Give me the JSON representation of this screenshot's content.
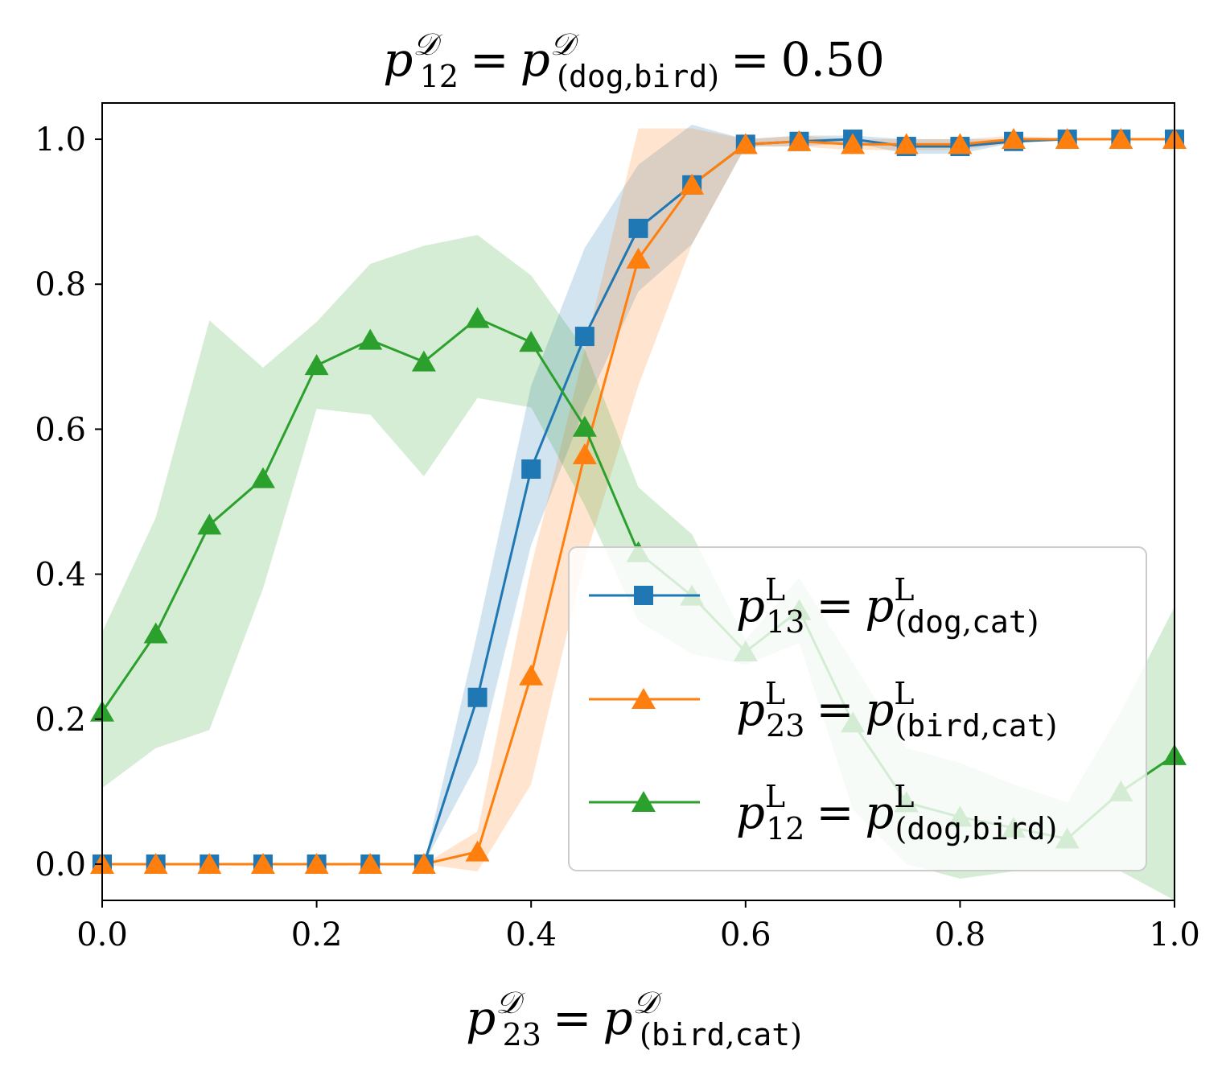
{
  "chart_data": {
    "type": "line",
    "title": {
      "lhs_var": "p",
      "lhs_sup": "𝒟",
      "lhs_sub": "12",
      "eq": "=",
      "rhs_var": "p",
      "rhs_sup": "𝒟",
      "rhs_sub_open": "(",
      "rhs_sub_a": "dog",
      "rhs_sub_sep": ",",
      "rhs_sub_b": "bird",
      "rhs_sub_close": ")",
      "eq2": "=",
      "value": "0.50"
    },
    "xlabel": {
      "lhs_var": "p",
      "lhs_sup": "𝒟",
      "lhs_sub": "23",
      "eq": "=",
      "rhs_var": "p",
      "rhs_sup": "𝒟",
      "rhs_sub_open": "(",
      "rhs_sub_a": "bird",
      "rhs_sub_sep": ",",
      "rhs_sub_b": "cat",
      "rhs_sub_close": ")"
    },
    "ylabel": "",
    "xlim": [
      0.0,
      1.0
    ],
    "ylim": [
      -0.05,
      1.05
    ],
    "xticks": [
      0.0,
      0.2,
      0.4,
      0.6,
      0.8,
      1.0
    ],
    "xtick_labels": [
      "0.0",
      "0.2",
      "0.4",
      "0.6",
      "0.8",
      "1.0"
    ],
    "yticks": [
      0.0,
      0.2,
      0.4,
      0.6,
      0.8,
      1.0
    ],
    "ytick_labels": [
      "0.0",
      "0.2",
      "0.4",
      "0.6",
      "0.8",
      "1.0"
    ],
    "grid": false,
    "legend_position": "lower right",
    "x": [
      0.0,
      0.05,
      0.1,
      0.15,
      0.2,
      0.25,
      0.3,
      0.35,
      0.4,
      0.45,
      0.5,
      0.55,
      0.6,
      0.65,
      0.7,
      0.75,
      0.8,
      0.85,
      0.9,
      0.95,
      1.0
    ],
    "series": [
      {
        "key": "s13",
        "color": "#1f77b4",
        "marker": "square",
        "label": {
          "var": "p",
          "sup": "L",
          "sub": "13",
          "eq": "=",
          "rvar": "p",
          "rsup": "L",
          "open": "(",
          "a": "dog",
          "sep": ",",
          "b": "cat",
          "close": ")"
        },
        "values": [
          0.0,
          0.0,
          0.0,
          0.0,
          0.0,
          0.0,
          0.0,
          0.23,
          0.545,
          0.728,
          0.877,
          0.937,
          0.993,
          0.997,
          1.0,
          0.99,
          0.99,
          0.997,
          1.0,
          1.0,
          1.0
        ],
        "lower": [
          0.0,
          0.0,
          0.0,
          0.0,
          0.0,
          0.0,
          0.0,
          0.14,
          0.44,
          0.63,
          0.79,
          0.855,
          0.99,
          0.99,
          0.995,
          0.98,
          0.98,
          0.995,
          1.0,
          1.0,
          1.0
        ],
        "upper": [
          0.0,
          0.0,
          0.0,
          0.0,
          0.0,
          0.0,
          0.0,
          0.32,
          0.66,
          0.85,
          0.965,
          1.02,
          1.0,
          1.005,
          1.005,
          1.0,
          1.0,
          1.0,
          1.0,
          1.0,
          1.0
        ]
      },
      {
        "key": "s23",
        "color": "#ff7f0e",
        "marker": "triangle",
        "label": {
          "var": "p",
          "sup": "L",
          "sub": "23",
          "eq": "=",
          "rvar": "p",
          "rsup": "L",
          "open": "(",
          "a": "bird",
          "sep": ",",
          "b": "cat",
          "close": ")"
        },
        "values": [
          0.0,
          0.0,
          0.0,
          0.0,
          0.0,
          0.0,
          0.0,
          0.017,
          0.26,
          0.565,
          0.835,
          0.937,
          0.993,
          0.997,
          0.993,
          0.993,
          0.993,
          1.0,
          1.0,
          1.0,
          1.0
        ],
        "lower": [
          0.0,
          0.0,
          0.0,
          0.0,
          0.0,
          0.0,
          0.0,
          -0.01,
          0.11,
          0.42,
          0.66,
          0.855,
          0.99,
          0.99,
          0.985,
          0.985,
          0.985,
          0.995,
          1.0,
          1.0,
          1.0
        ],
        "upper": [
          0.0,
          0.0,
          0.0,
          0.0,
          0.0,
          0.0,
          0.0,
          0.045,
          0.41,
          0.71,
          1.015,
          1.015,
          1.0,
          1.005,
          1.0,
          1.0,
          1.0,
          1.005,
          1.0,
          1.0,
          1.0
        ]
      },
      {
        "key": "s12",
        "color": "#2ca02c",
        "marker": "triangle",
        "label": {
          "var": "p",
          "sup": "L",
          "sub": "12",
          "eq": "=",
          "rvar": "p",
          "rsup": "L",
          "open": "(",
          "a": "dog",
          "sep": ",",
          "b": "bird",
          "close": ")"
        },
        "values": [
          0.21,
          0.318,
          0.468,
          0.532,
          0.688,
          0.723,
          0.693,
          0.753,
          0.72,
          0.603,
          0.43,
          0.37,
          0.293,
          0.35,
          0.195,
          0.085,
          0.065,
          0.05,
          0.035,
          0.1,
          0.15
        ],
        "lower": [
          0.105,
          0.16,
          0.185,
          0.38,
          0.628,
          0.62,
          0.535,
          0.643,
          0.63,
          0.495,
          0.335,
          0.29,
          0.275,
          0.305,
          0.075,
          0.0,
          -0.02,
          -0.01,
          -0.01,
          -0.01,
          -0.05
        ],
        "upper": [
          0.32,
          0.478,
          0.75,
          0.685,
          0.748,
          0.828,
          0.853,
          0.868,
          0.812,
          0.71,
          0.52,
          0.455,
          0.31,
          0.395,
          0.278,
          0.16,
          0.14,
          0.11,
          0.085,
          0.21,
          0.355
        ]
      }
    ]
  }
}
